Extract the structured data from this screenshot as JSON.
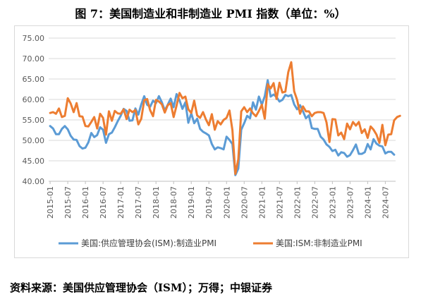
{
  "title": "图 7：美国制造业和非制造业 PMI 指数（单位：%）",
  "source": "资料来源：美国供应管理协会（ISM）；万得；中银证券",
  "colors": {
    "manufacturing": "#5B9BD5",
    "non_manufacturing": "#ED7D31",
    "grid": "#d9d9d9",
    "axis_text": "#595959"
  },
  "chart_data": {
    "type": "line",
    "x_start": "2015-01",
    "x_tick_labels": [
      "2015-01",
      "2015-07",
      "2016-01",
      "2016-07",
      "2017-01",
      "2017-07",
      "2018-01",
      "2018-07",
      "2019-01",
      "2019-07",
      "2020-01",
      "2020-07",
      "2021-01",
      "2021-07",
      "2022-01",
      "2022-07",
      "2023-01",
      "2023-07",
      "2024-01",
      "2024-07"
    ],
    "ylim": [
      40,
      75
    ],
    "y_ticks": [
      "40.00",
      "45.00",
      "50.00",
      "55.00",
      "60.00",
      "65.00",
      "70.00",
      "75.00"
    ],
    "grid": true,
    "legend": "bottom",
    "series": [
      {
        "name": "美国:供应管理协会(ISM):制造业PMI",
        "values": [
          53.5,
          52.9,
          51.5,
          51.5,
          52.8,
          53.5,
          52.7,
          51.1,
          50.2,
          50.1,
          48.6,
          48.0,
          48.2,
          49.5,
          51.8,
          50.8,
          51.3,
          53.2,
          52.6,
          49.4,
          51.5,
          51.9,
          53.2,
          54.7,
          56.0,
          57.7,
          57.2,
          54.8,
          54.9,
          57.8,
          56.3,
          58.8,
          60.8,
          58.7,
          58.2,
          59.7,
          59.1,
          60.8,
          59.3,
          57.3,
          58.7,
          60.2,
          58.1,
          61.3,
          59.8,
          57.7,
          59.3,
          54.3,
          56.6,
          54.2,
          55.3,
          52.8,
          52.1,
          51.7,
          51.2,
          49.1,
          47.8,
          48.3,
          48.1,
          47.8,
          50.9,
          50.1,
          49.1,
          41.5,
          43.1,
          52.6,
          54.2,
          56.0,
          55.4,
          59.3,
          57.5,
          60.7,
          58.7,
          60.8,
          64.7,
          60.7,
          61.2,
          60.6,
          59.5,
          59.9,
          61.1,
          60.8,
          61.1,
          58.8,
          57.6,
          58.6,
          57.1,
          55.4,
          56.1,
          53.0,
          52.8,
          52.8,
          50.9,
          50.2,
          49.0,
          48.4,
          47.4,
          47.7,
          46.3,
          47.1,
          46.9,
          46.0,
          46.4,
          47.6,
          49.0,
          46.7,
          46.7,
          47.1,
          49.1,
          47.8,
          50.3,
          49.2,
          48.7,
          48.5,
          46.8,
          47.2,
          47.2,
          46.5
        ]
      },
      {
        "name": "美国:ISM:非制造业PMI",
        "values": [
          56.7,
          56.9,
          56.5,
          57.8,
          55.7,
          56.0,
          60.3,
          59.0,
          56.9,
          59.1,
          55.9,
          55.8,
          53.5,
          53.4,
          54.5,
          55.7,
          52.9,
          56.5,
          55.5,
          51.4,
          57.1,
          54.8,
          57.2,
          56.6,
          56.5,
          57.6,
          55.2,
          57.5,
          56.9,
          57.4,
          53.9,
          55.3,
          59.8,
          60.1,
          57.4,
          55.9,
          59.9,
          59.5,
          58.8,
          56.8,
          58.6,
          59.1,
          55.7,
          58.5,
          61.6,
          60.3,
          60.7,
          57.6,
          56.7,
          59.7,
          56.1,
          55.5,
          56.9,
          55.1,
          53.7,
          56.4,
          52.6,
          54.7,
          53.9,
          55.0,
          55.5,
          57.3,
          52.5,
          41.8,
          45.4,
          57.1,
          58.1,
          56.9,
          57.8,
          56.6,
          55.9,
          57.2,
          58.7,
          55.3,
          63.7,
          62.7,
          64.0,
          60.1,
          64.1,
          61.7,
          61.9,
          66.7,
          69.1,
          62.0,
          59.9,
          56.5,
          58.3,
          57.1,
          57.1,
          55.9,
          56.7,
          56.9,
          56.9,
          56.7,
          54.4,
          49.6,
          55.2,
          55.1,
          51.2,
          51.9,
          50.3,
          54.1,
          52.7,
          54.5,
          53.6,
          54.5,
          51.8,
          52.7,
          50.6,
          53.4,
          52.6,
          51.4,
          49.4,
          53.8,
          48.8,
          51.4,
          51.5,
          54.9,
          55.7,
          56.0
        ]
      }
    ]
  }
}
